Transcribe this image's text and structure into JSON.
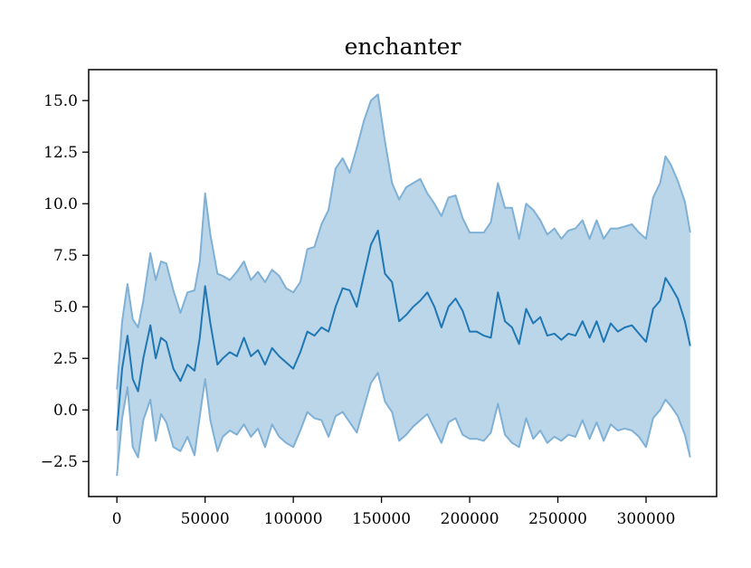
{
  "chart_data": {
    "type": "line",
    "title": "enchanter",
    "xlabel": "",
    "ylabel": "",
    "xlim": [
      -16000,
      340000
    ],
    "ylim": [
      -4.2,
      16.5
    ],
    "x_ticks": [
      0,
      50000,
      100000,
      150000,
      200000,
      250000,
      300000
    ],
    "x_tick_labels": [
      "0",
      "50000",
      "100000",
      "150000",
      "200000",
      "250000",
      "300000"
    ],
    "y_ticks": [
      -2.5,
      0.0,
      2.5,
      5.0,
      7.5,
      10.0,
      12.5,
      15.0
    ],
    "y_tick_labels": [
      "−2.5",
      "0.0",
      "2.5",
      "5.0",
      "7.5",
      "10.0",
      "12.5",
      "15.0"
    ],
    "grid": false,
    "legend": "none",
    "colors": {
      "line": "#1f77b4",
      "band_fill": "#1f77b4",
      "band_edge": "#7fb0d6"
    },
    "series": [
      {
        "x": [
          0,
          3000,
          6000,
          9000,
          12000,
          15000,
          19000,
          22000,
          25000,
          28000,
          32000,
          36000,
          40000,
          44000,
          47000,
          50000,
          53000,
          57000,
          60000,
          64000,
          68000,
          72000,
          76000,
          80000,
          84000,
          88000,
          92000,
          96000,
          100000,
          104000,
          108000,
          112000,
          116000,
          120000,
          124000,
          128000,
          132000,
          136000,
          140000,
          144000,
          148000,
          152000,
          156000,
          160000,
          164000,
          168000,
          172000,
          176000,
          180000,
          184000,
          188000,
          192000,
          196000,
          200000,
          204000,
          208000,
          212000,
          216000,
          220000,
          224000,
          228000,
          232000,
          236000,
          240000,
          244000,
          248000,
          252000,
          256000,
          260000,
          264000,
          268000,
          272000,
          276000,
          280000,
          284000,
          288000,
          292000,
          296000,
          300000,
          304000,
          308000,
          311000,
          314000,
          318000,
          322000,
          325000
        ],
        "y": [
          -1.0,
          2.0,
          3.6,
          1.5,
          0.9,
          2.5,
          4.1,
          2.5,
          3.5,
          3.3,
          2.0,
          1.4,
          2.2,
          1.9,
          3.5,
          6.0,
          4.2,
          2.2,
          2.5,
          2.8,
          2.6,
          3.5,
          2.6,
          2.9,
          2.2,
          3.0,
          2.6,
          2.3,
          2.0,
          2.8,
          3.8,
          3.6,
          4.0,
          3.8,
          5.0,
          5.9,
          5.8,
          5.0,
          6.5,
          8.0,
          8.7,
          6.6,
          6.2,
          4.3,
          4.6,
          5.0,
          5.3,
          5.7,
          5.0,
          4.0,
          5.0,
          5.4,
          4.8,
          3.8,
          3.8,
          3.6,
          3.5,
          5.7,
          4.3,
          4.0,
          3.2,
          4.9,
          4.2,
          4.5,
          3.6,
          3.7,
          3.4,
          3.7,
          3.6,
          4.3,
          3.5,
          4.3,
          3.3,
          4.2,
          3.8,
          4.0,
          4.1,
          3.7,
          3.3,
          4.9,
          5.3,
          6.4,
          6.0,
          5.4,
          4.3,
          3.1
        ],
        "lower": [
          -3.2,
          -0.4,
          1.1,
          -1.8,
          -2.3,
          -0.5,
          0.5,
          -1.5,
          -0.2,
          -0.6,
          -1.8,
          -2.0,
          -1.3,
          -2.2,
          -0.3,
          1.5,
          -0.5,
          -2.0,
          -1.3,
          -1.0,
          -1.2,
          -0.7,
          -1.3,
          -0.9,
          -1.8,
          -0.7,
          -1.3,
          -1.6,
          -1.8,
          -1.0,
          -0.1,
          -0.4,
          -0.5,
          -1.3,
          -0.3,
          -0.1,
          -0.6,
          -1.1,
          0.1,
          1.3,
          1.8,
          0.4,
          -0.1,
          -1.5,
          -1.2,
          -0.8,
          -0.5,
          -0.2,
          -0.9,
          -1.6,
          -0.6,
          -0.4,
          -1.2,
          -1.4,
          -1.4,
          -1.5,
          -1.1,
          0.3,
          -1.2,
          -1.6,
          -1.8,
          -0.4,
          -1.4,
          -1.0,
          -1.6,
          -1.3,
          -1.5,
          -1.2,
          -1.3,
          -0.5,
          -1.4,
          -0.6,
          -1.5,
          -0.7,
          -1.0,
          -0.9,
          -1.0,
          -1.3,
          -1.8,
          -0.4,
          0.0,
          0.5,
          0.2,
          -0.3,
          -1.2,
          -2.3
        ],
        "upper": [
          1.0,
          4.3,
          6.1,
          4.4,
          4.0,
          5.3,
          7.6,
          6.3,
          7.2,
          7.1,
          5.8,
          4.7,
          5.7,
          5.8,
          7.2,
          10.5,
          8.5,
          6.6,
          6.5,
          6.3,
          6.7,
          7.2,
          6.3,
          6.7,
          6.2,
          6.8,
          6.5,
          5.9,
          5.7,
          6.2,
          7.8,
          7.9,
          9.0,
          9.7,
          11.7,
          12.2,
          11.5,
          12.7,
          14.0,
          15.0,
          15.3,
          13.0,
          11.0,
          10.2,
          10.8,
          11.0,
          11.2,
          10.5,
          10.0,
          9.4,
          10.3,
          10.4,
          9.3,
          8.6,
          8.6,
          8.6,
          9.1,
          11.0,
          9.8,
          9.8,
          8.3,
          10.0,
          9.7,
          9.2,
          8.5,
          8.8,
          8.3,
          8.7,
          8.8,
          9.2,
          8.3,
          9.2,
          8.3,
          8.8,
          8.8,
          8.9,
          9.0,
          8.6,
          8.3,
          10.3,
          11.0,
          12.3,
          11.9,
          11.1,
          10.1,
          8.6
        ]
      }
    ]
  }
}
